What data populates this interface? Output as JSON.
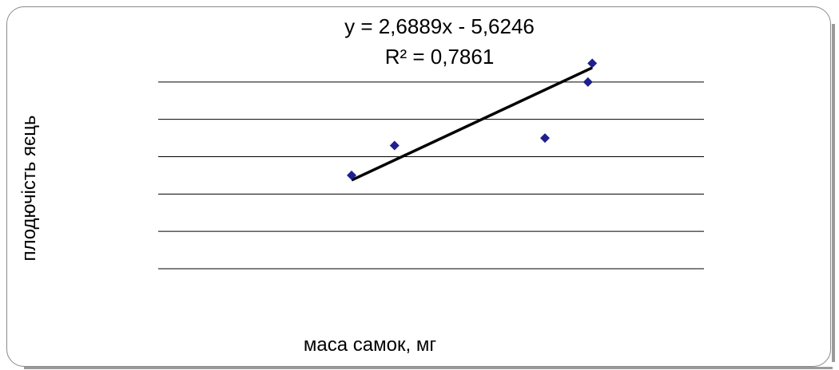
{
  "chart_data": {
    "type": "scatter",
    "title": "",
    "trendline": {
      "equation": "y = 2,6889x - 5,6246",
      "r_squared": "R² = 0,7861",
      "slope": 2.6889,
      "intercept": -5.6246,
      "x_range": [
        6.5,
        12.1
      ]
    },
    "xlabel": "маса самок, мг",
    "ylabel": "плодючість яєць",
    "xlim": [
      2.0,
      14.7
    ],
    "ylim": [
      0,
      30
    ],
    "grid": {
      "horizontal": true,
      "vertical": false,
      "y_values": [
        5,
        10,
        15,
        20,
        25
      ]
    },
    "series": [
      {
        "marker": "diamond",
        "color": "#1f1f8f",
        "points": [
          {
            "x": 6.5,
            "y": 12.5
          },
          {
            "x": 7.5,
            "y": 16.5
          },
          {
            "x": 11.0,
            "y": 17.5
          },
          {
            "x": 12.0,
            "y": 25.0
          },
          {
            "x": 12.1,
            "y": 27.5
          }
        ]
      }
    ],
    "trend_color": "#000000",
    "grid_color": "#000000"
  }
}
